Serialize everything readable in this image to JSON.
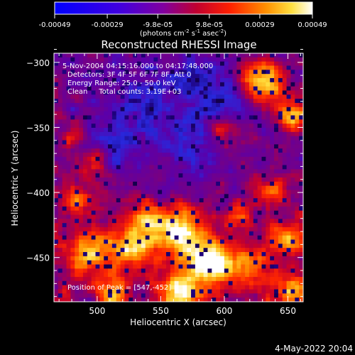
{
  "chart_data": {
    "type": "heatmap",
    "title": "Reconstructed RHESSI Image",
    "xlabel": "Heliocentric X (arcsec)",
    "ylabel": "Heliocentric Y (arcsec)",
    "xlim": [
      466,
      662
    ],
    "ylim": [
      -484,
      -293
    ],
    "x_ticks": [
      500,
      550,
      600,
      650
    ],
    "y_ticks": [
      -300,
      -350,
      -400,
      -450
    ],
    "colorbar": {
      "ticks": [
        "-0.00049",
        "-0.00029",
        "-9.8e-05",
        "9.8e-05",
        "0.00029",
        "0.00049"
      ],
      "tick_values": [
        -0.00049,
        -0.00029,
        -9.8e-05,
        9.8e-05,
        0.00029,
        0.00049
      ],
      "range": [
        -0.00049,
        0.00049
      ],
      "unit_label": {
        "prefix": "(photons cm",
        "sup1": "-2",
        "mid1": " s",
        "sup2": "-1",
        "mid2": " asec",
        "sup3": "-2",
        "suffix": ")"
      }
    },
    "annotations": [
      "5-Nov-2004 04:15:16.000 to 04:17:48.000",
      "Detectors: 3F 4F 5F 6F 7F 8F, Att 0",
      "Energy Range: 25.0 - 50.0 keV",
      "Clean     Total counts: 3.19E+03"
    ],
    "peak_label": "Position of Peak = [547,-452]",
    "peak_position": [
      547,
      -452
    ],
    "footer_date": "4-May-2022 20:04",
    "colormap": [
      "#000000",
      "#0000ff",
      "#7000a0",
      "#ff0000",
      "#ff8000",
      "#ffff00",
      "#ffffff"
    ]
  }
}
